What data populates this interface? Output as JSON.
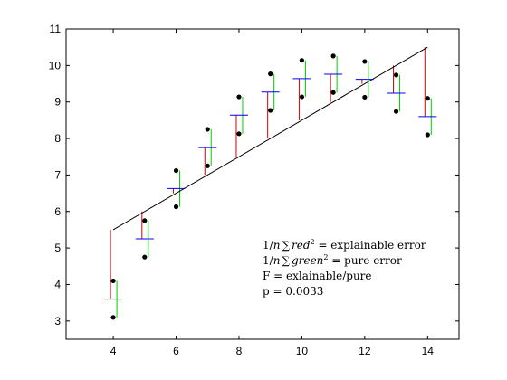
{
  "chart_data": {
    "type": "scatter",
    "title": "",
    "xlabel": "",
    "ylabel": "",
    "xlim": [
      2.5,
      15.0
    ],
    "ylim": [
      2.5,
      11.0
    ],
    "xticks": [
      4,
      6,
      8,
      10,
      12,
      14
    ],
    "yticks": [
      3,
      4,
      5,
      6,
      7,
      8,
      9,
      10,
      11
    ],
    "grid": false,
    "regression_line": {
      "x": [
        4,
        14
      ],
      "y": [
        5.5,
        10.5
      ],
      "color": "#000000"
    },
    "points": [
      {
        "x": 4,
        "y": 4.1
      },
      {
        "x": 4,
        "y": 3.1
      },
      {
        "x": 5,
        "y": 5.75
      },
      {
        "x": 5,
        "y": 4.75
      },
      {
        "x": 6,
        "y": 7.12
      },
      {
        "x": 6,
        "y": 6.13
      },
      {
        "x": 7,
        "y": 8.25
      },
      {
        "x": 7,
        "y": 7.25
      },
      {
        "x": 8,
        "y": 9.14
      },
      {
        "x": 8,
        "y": 8.13
      },
      {
        "x": 9,
        "y": 9.77
      },
      {
        "x": 9,
        "y": 8.77
      },
      {
        "x": 10,
        "y": 10.14
      },
      {
        "x": 10,
        "y": 9.14
      },
      {
        "x": 11,
        "y": 10.26
      },
      {
        "x": 11,
        "y": 9.26
      },
      {
        "x": 12,
        "y": 10.11
      },
      {
        "x": 12,
        "y": 9.13
      },
      {
        "x": 13,
        "y": 9.74
      },
      {
        "x": 13,
        "y": 8.74
      },
      {
        "x": 14,
        "y": 9.1
      },
      {
        "x": 14,
        "y": 8.1
      }
    ],
    "group_means": [
      {
        "x": 4,
        "mean": 3.6
      },
      {
        "x": 5,
        "mean": 5.25
      },
      {
        "x": 6,
        "mean": 6.63
      },
      {
        "x": 7,
        "mean": 7.75
      },
      {
        "x": 8,
        "mean": 8.64
      },
      {
        "x": 9,
        "mean": 9.27
      },
      {
        "x": 10,
        "mean": 9.64
      },
      {
        "x": 11,
        "mean": 9.76
      },
      {
        "x": 12,
        "mean": 9.62
      },
      {
        "x": 13,
        "mean": 9.24
      },
      {
        "x": 14,
        "mean": 8.6
      }
    ],
    "colors": {
      "points": "#000000",
      "mean_marker": "#0000ff",
      "explainable_error": "#cc0000",
      "pure_error": "#00cc00",
      "line": "#000000"
    },
    "annotations": {
      "line1_prefix": "1/",
      "line1_n": "n",
      "line1_sum": "∑",
      "line1_var": "red",
      "line1_sup": "2",
      "line1_suffix": " = explainable error",
      "line2_prefix": "1/",
      "line2_n": "n",
      "line2_sum": "∑",
      "line2_var": "green",
      "line2_sup": "2",
      "line2_suffix": " = pure error",
      "line3": "F = exlainable/pure",
      "line4": "p = 0.0033"
    }
  }
}
